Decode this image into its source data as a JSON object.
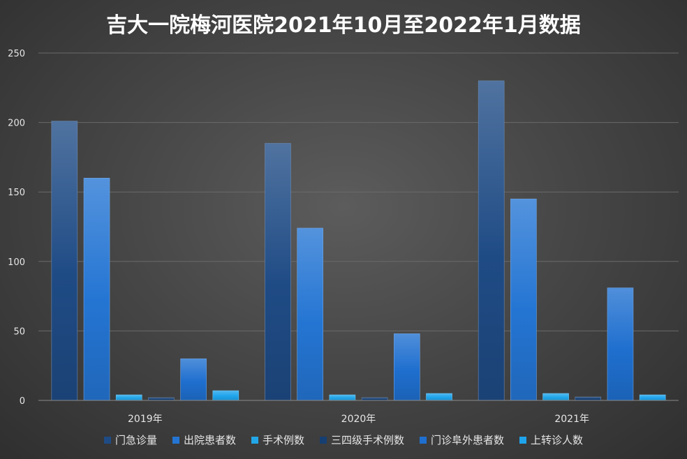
{
  "chart_data": {
    "type": "bar",
    "title": "吉大一院梅河医院2021年10月至2022年1月数据",
    "categories": [
      "2019年",
      "2020年",
      "2021年"
    ],
    "ylim": [
      0,
      250
    ],
    "yticks": [
      0,
      50,
      100,
      150,
      200,
      250
    ],
    "grid": true,
    "legend_position": "bottom",
    "series": [
      {
        "name": "门急诊量",
        "values": [
          201,
          185,
          230
        ],
        "color": "#1f4b85"
      },
      {
        "name": "出院患者数",
        "values": [
          160,
          124,
          145
        ],
        "color": "#2475d3"
      },
      {
        "name": "手术例数",
        "values": [
          4,
          4,
          5
        ],
        "color": "#22a6e8"
      },
      {
        "name": "三四级手术例数",
        "values": [
          2,
          2,
          2.5
        ],
        "color": "#163f73"
      },
      {
        "name": "门诊阜外患者数",
        "values": [
          30,
          48,
          81
        ],
        "color": "#1f6fcf"
      },
      {
        "name": "上转诊人数",
        "values": [
          7,
          5,
          4
        ],
        "color": "#1fa4ec"
      }
    ]
  }
}
